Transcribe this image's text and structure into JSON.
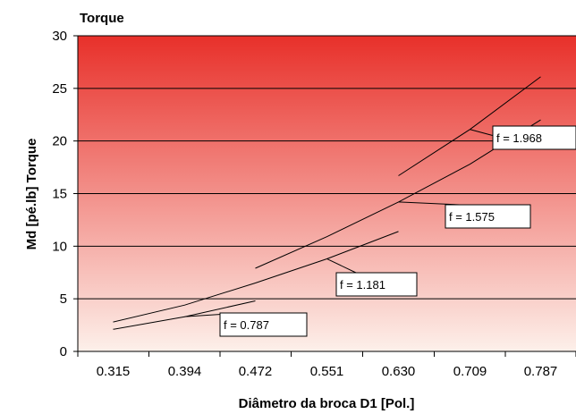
{
  "chart_data": {
    "type": "line",
    "title": "Torque",
    "xlabel": "Diâmetro da broca D1 [Pol.]",
    "ylabel": "Md [pé.lb] Torque",
    "categories": [
      "0.315",
      "0.394",
      "0.472",
      "0.551",
      "0.630",
      "0.709",
      "0.787"
    ],
    "ylim": [
      0,
      30
    ],
    "yticks": [
      0,
      5,
      10,
      15,
      20,
      25,
      30
    ],
    "grid": true,
    "background_gradient": [
      "#e8302a",
      "#fdf0ea"
    ],
    "series": [
      {
        "label": "f = 0.787",
        "color": "#000000",
        "points": [
          [
            0.315,
            2.1
          ],
          [
            0.394,
            3.3
          ],
          [
            0.472,
            4.8
          ]
        ]
      },
      {
        "label": "f = 1.181",
        "color": "#000000",
        "points": [
          [
            0.315,
            2.8
          ],
          [
            0.394,
            4.4
          ],
          [
            0.472,
            6.5
          ],
          [
            0.551,
            8.8
          ],
          [
            0.63,
            11.4
          ]
        ]
      },
      {
        "label": "f = 1.575",
        "color": "#000000",
        "points": [
          [
            0.472,
            7.9
          ],
          [
            0.551,
            10.9
          ],
          [
            0.63,
            14.2
          ],
          [
            0.709,
            17.8
          ],
          [
            0.787,
            22.0
          ]
        ]
      },
      {
        "label": "f = 1.968",
        "color": "#000000",
        "points": [
          [
            0.63,
            16.7
          ],
          [
            0.709,
            21.1
          ],
          [
            0.787,
            26.1
          ]
        ]
      }
    ]
  }
}
